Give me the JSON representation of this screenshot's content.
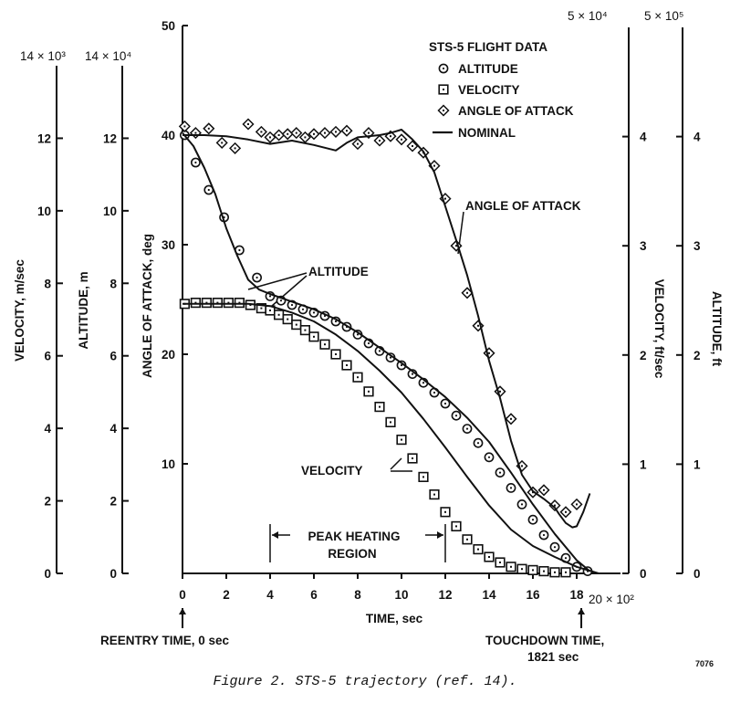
{
  "figure": {
    "caption": "Figure 2.  STS-5 trajectory (ref. 14).",
    "code": "7076",
    "reentry_label": "REENTRY TIME, 0 sec",
    "touchdown_label_line1": "TOUCHDOWN TIME,",
    "touchdown_label_line2": "1821 sec"
  },
  "chart_data": {
    "type": "scatter",
    "title": "STS-5 FLIGHT DATA",
    "xlabel": "TIME, sec",
    "x_multiplier": "20 × 10²",
    "xlim": [
      0,
      20
    ],
    "x_ticks": [
      "0",
      "2",
      "4",
      "6",
      "8",
      "10",
      "12",
      "14",
      "16",
      "18"
    ],
    "axes": {
      "aoa": {
        "label": "ANGLE OF ATTACK, deg",
        "range": [
          0,
          50
        ],
        "ticks": [
          "10",
          "20",
          "30",
          "40",
          "50"
        ]
      },
      "vel_ms": {
        "label": "VELOCITY, m/sec",
        "multiplier": "14 × 10³",
        "range": [
          0,
          14
        ],
        "ticks": [
          "0",
          "2",
          "4",
          "6",
          "8",
          "10",
          "12"
        ]
      },
      "alt_m": {
        "label": "ALTITUDE, m",
        "multiplier": "14 × 10⁴",
        "range": [
          0,
          14
        ],
        "ticks": [
          "0",
          "2",
          "4",
          "6",
          "8",
          "10",
          "12"
        ]
      },
      "vel_fts": {
        "label": "VELOCITY, ft/sec",
        "multiplier": "5 × 10⁴",
        "range": [
          0,
          5
        ],
        "ticks": [
          "0",
          "1",
          "2",
          "3",
          "4"
        ]
      },
      "alt_ft": {
        "label": "ALTITUDE, ft",
        "multiplier": "5 × 10⁵",
        "range": [
          0,
          5
        ],
        "ticks": [
          "0",
          "1",
          "2",
          "3",
          "4"
        ]
      }
    },
    "legend": [
      {
        "marker": "circle",
        "label": "ALTITUDE"
      },
      {
        "marker": "square",
        "label": "VELOCITY"
      },
      {
        "marker": "diamond",
        "label": "ANGLE OF ATTACK"
      },
      {
        "marker": "line",
        "label": "NOMINAL"
      }
    ],
    "annotations": {
      "aoa": "ANGLE OF ATTACK",
      "altitude": "ALTITUDE",
      "velocity": "VELOCITY",
      "peak_line1": "PEAK HEATING",
      "peak_line2": "REGION",
      "peak_range": [
        4,
        12
      ]
    },
    "series": [
      {
        "name": "ALTITUDE",
        "marker": "circle",
        "axis": "aoa",
        "x": [
          0.1,
          0.6,
          1.2,
          1.9,
          2.6,
          3.4,
          4.0,
          4.5,
          5.0,
          5.5,
          6.0,
          6.5,
          7.0,
          7.5,
          8.0,
          8.5,
          9.0,
          9.5,
          10.0,
          10.5,
          11.0,
          11.5,
          12.0,
          12.5,
          13.0,
          13.5,
          14.0,
          14.5,
          15.0,
          15.5,
          16.0,
          16.5,
          17.0,
          17.5,
          18.0,
          18.5
        ],
        "y": [
          40.0,
          37.5,
          35.0,
          32.5,
          29.5,
          27.0,
          25.3,
          24.9,
          24.5,
          24.1,
          23.8,
          23.5,
          23.0,
          22.5,
          21.8,
          21.0,
          20.3,
          19.7,
          19.0,
          18.2,
          17.4,
          16.5,
          15.5,
          14.4,
          13.2,
          11.9,
          10.6,
          9.2,
          7.8,
          6.3,
          4.9,
          3.5,
          2.4,
          1.4,
          0.6,
          0.2
        ]
      },
      {
        "name": "VELOCITY",
        "marker": "square",
        "axis": "aoa",
        "x": [
          0.1,
          0.6,
          1.1,
          1.6,
          2.1,
          2.6,
          3.1,
          3.6,
          4.0,
          4.4,
          4.8,
          5.2,
          5.6,
          6.0,
          6.5,
          7.0,
          7.5,
          8.0,
          8.5,
          9.0,
          9.5,
          10.0,
          10.5,
          11.0,
          11.5,
          12.0,
          12.5,
          13.0,
          13.5,
          14.0,
          14.5,
          15.0,
          15.5,
          16.0,
          16.5,
          17.0,
          17.5
        ],
        "y": [
          24.6,
          24.7,
          24.7,
          24.7,
          24.7,
          24.7,
          24.5,
          24.2,
          24.0,
          23.6,
          23.2,
          22.7,
          22.2,
          21.6,
          20.9,
          20.0,
          19.0,
          17.9,
          16.6,
          15.2,
          13.8,
          12.2,
          10.5,
          8.8,
          7.2,
          5.6,
          4.3,
          3.1,
          2.2,
          1.5,
          1.0,
          0.6,
          0.4,
          0.3,
          0.2,
          0.1,
          0.1
        ]
      },
      {
        "name": "ANGLE OF ATTACK",
        "marker": "diamond",
        "axis": "aoa",
        "x": [
          0.1,
          0.6,
          1.2,
          1.8,
          2.4,
          3.0,
          3.6,
          4.0,
          4.4,
          4.8,
          5.2,
          5.6,
          6.0,
          6.5,
          7.0,
          7.5,
          8.0,
          8.5,
          9.0,
          9.5,
          10.0,
          10.5,
          11.0,
          11.5,
          12.0,
          12.5,
          13.0,
          13.5,
          14.0,
          14.5,
          15.0,
          15.5,
          16.0,
          16.5,
          17.0,
          17.5,
          18.0
        ],
        "y": [
          40.8,
          40.2,
          40.6,
          39.3,
          38.8,
          41.0,
          40.3,
          39.8,
          40.0,
          40.1,
          40.2,
          39.8,
          40.1,
          40.2,
          40.3,
          40.4,
          39.2,
          40.2,
          39.5,
          39.9,
          39.6,
          39.0,
          38.4,
          37.2,
          34.2,
          29.9,
          25.6,
          22.6,
          20.1,
          16.6,
          14.1,
          9.8,
          7.4,
          7.6,
          6.2,
          5.6,
          6.3
        ]
      },
      {
        "name": "NOMINAL",
        "marker": "line",
        "axis": "aoa",
        "part": "angle of attack",
        "x": [
          0,
          1,
          2,
          3,
          4,
          5,
          6,
          7,
          7.5,
          8,
          9,
          9.5,
          10,
          10.5,
          11,
          11.5,
          12,
          12.5,
          13,
          13.5,
          14,
          14.5,
          15,
          15.5,
          16,
          16.5,
          17,
          17.2,
          17.5,
          17.8,
          18,
          18.3,
          18.6
        ],
        "y": [
          40,
          40,
          39.9,
          39.6,
          39.2,
          39.5,
          39.1,
          38.6,
          39.3,
          39.8,
          40.0,
          40.2,
          40.5,
          39.6,
          38.5,
          36.6,
          33.5,
          30.4,
          27.2,
          23.5,
          19.4,
          16.0,
          12.1,
          9.0,
          7.5,
          6.8,
          6.0,
          5.4,
          4.6,
          4.2,
          4.3,
          5.6,
          7.3
        ]
      },
      {
        "name": "NOMINAL",
        "marker": "line",
        "axis": "aoa",
        "part": "altitude",
        "x": [
          0,
          0.5,
          1,
          1.5,
          2,
          2.5,
          3,
          3.5,
          4,
          5,
          6,
          7,
          8,
          9,
          10,
          11,
          12,
          13,
          14,
          15,
          16,
          17,
          18,
          18.6
        ],
        "y": [
          40.2,
          39.0,
          37.0,
          34.6,
          31.5,
          29.0,
          26.8,
          25.9,
          25.5,
          24.8,
          24.1,
          23.2,
          22.0,
          20.6,
          19.2,
          17.7,
          16.1,
          14.2,
          12.0,
          9.2,
          6.3,
          3.6,
          1.2,
          0.2
        ]
      },
      {
        "name": "NOMINAL",
        "marker": "line",
        "axis": "aoa",
        "part": "velocity",
        "x": [
          0,
          1,
          2,
          3,
          4,
          5,
          6,
          7,
          8,
          9,
          10,
          11,
          12,
          13,
          14,
          15,
          16,
          17,
          18,
          19
        ],
        "y": [
          24.6,
          24.6,
          24.6,
          24.6,
          24.4,
          23.8,
          23.0,
          21.8,
          20.3,
          18.5,
          16.5,
          14.1,
          11.5,
          8.8,
          6.2,
          4.0,
          2.5,
          1.5,
          0.6,
          0.0
        ]
      }
    ]
  }
}
